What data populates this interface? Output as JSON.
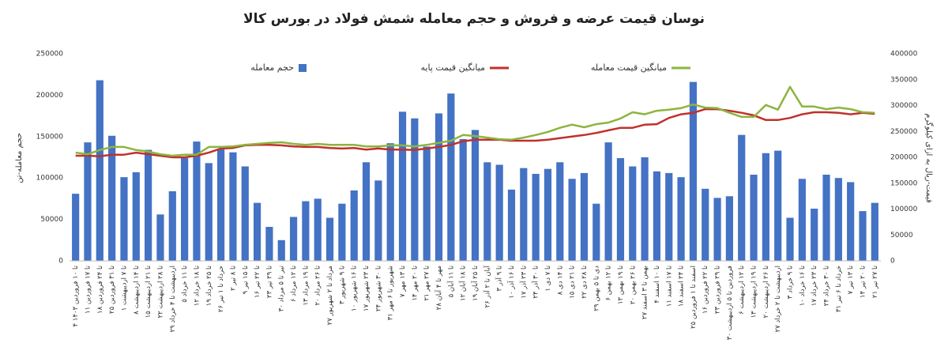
{
  "chart_data": {
    "type": "bar_line",
    "title": "نوسان قیمت عرضه و فروش و حجم معامله شمش فولاد در بورس کالا",
    "y_label": "حجم معامله-تن",
    "y2_label": "قیمت-ریال به ازای کیلوگرم",
    "categories": [
      "۴ تا ۱۰ فروردین ۱۴۰۳",
      "۱۱ تا ۱۷ فروردین",
      "۱۸ تا ۲۴ فروردین",
      "۲۵ تا ۳۱ فروردین",
      "۱ تا ۷ اردیبهشت",
      "۸ تا ۱۴ اردیبهشت",
      "۱۵ تا ۲۱ اردیبهشت",
      "۲۲ تا ۲۸ اردیبهشت",
      "۲۹ اردیبهشت تا ۴ خرداد",
      "۵ تا ۱۱ خرداد",
      "۱۲ تا ۱۸ خرداد",
      "۱۹ تا ۲۵ خرداد",
      "۲۶ خرداد تا ۱ تیر",
      "۲ تا ۸ تیر",
      "۹ تا ۱۵ تیر",
      "۱۶ تا ۲۲ تیر",
      "۲۳ تا ۲۹ تیر",
      "۳۰ تیر تا ۵ مرداد",
      "۶ تا ۱۲ مرداد",
      "۱۳ تا ۱۹ مرداد",
      "۲۰ تا ۲۶ مرداد",
      "۲۷ مرداد تا ۲ شهریور",
      "۳ تا ۹ شهریور",
      "۱۰ تا ۱۶ شهریور",
      "۱۷ تا ۲۳ شهریور",
      "۲۴ تا ۳۰ شهریور",
      "۳۱ شهریور تا ۶ مهر",
      "۷ تا ۱۳ مهر",
      "۱۴ تا ۲۰ مهر",
      "۲۱ تا ۲۷ مهر",
      "۲۸ مهر تا ۴ آبان",
      "۵ تا ۱۱ آبان",
      "۱۲ تا ۱۸ آبان",
      "۱۹ تا ۲۵ آبان",
      "۲۶ آبان تا ۲ آذر",
      "۳ تا ۹ آذر",
      "۱۰ تا ۱۶ آذر",
      "۱۷ تا ۲۳ آذر",
      "۲۴ تا ۳۰ آذر",
      "۱ تا ۷ دی",
      "۸ تا ۱۴ دی",
      "۱۵ تا ۲۱ دی",
      "۲۲ تا ۲۸ دی",
      "۲۹ دی تا ۵ بهمن",
      "۶ تا ۱۲ بهمن",
      "۱۳ تا ۱۹ بهمن",
      "۲۰ تا ۲۶ بهمن",
      "۲۷ بهمن تا ۳ اسفند",
      "۴ تا ۱۰ اسفند",
      "۱۱ تا ۱۷ اسفند",
      "۱۸ تا ۲۴ اسفند",
      "۲۵ اسفند تا ۱ فروردین",
      "۱۶ تا ۲۲ فروردین",
      "۲۳ تا ۲۹ فروردین",
      "۳۰ فروردین تا ۵ اردیبهشت",
      "۶ تا ۱۲ اردیبهشت",
      "۱۳ تا ۱۹ اردیبهشت",
      "۲۰ تا ۲۶ اردیبهشت",
      "۲۷ اردیبهشت تا ۲ خرداد",
      "۳ تا ۹ خرداد",
      "۱۰ تا ۱۶ خرداد",
      "۱۷ تا ۲۳ خرداد",
      "۲۴ تا ۳۰ خرداد",
      "۳۱ خرداد تا ۶ تیر",
      "۷ تا ۱۳ تیر",
      "۱۴ تا ۲۰ تیر",
      "۲۱ تا ۲۷ تیر"
    ],
    "series": [
      {
        "name": "حجم معامله",
        "color": "#4472c4",
        "kind": "bar",
        "axis": "y",
        "values": [
          81000,
          143000,
          218000,
          151000,
          101000,
          107000,
          134000,
          56000,
          84000,
          124000,
          144000,
          118000,
          135000,
          131000,
          114000,
          70000,
          41000,
          25000,
          53000,
          72000,
          75000,
          52000,
          69000,
          85000,
          119000,
          97000,
          142000,
          180000,
          172000,
          138000,
          178000,
          202000,
          147000,
          158000,
          119000,
          116000,
          86000,
          112000,
          105000,
          111000,
          119000,
          99000,
          106000,
          69000,
          143000,
          124000,
          114000,
          125000,
          108000,
          106000,
          101000,
          216000,
          87000,
          76000,
          78000,
          152000,
          104000,
          130000,
          133000,
          52000,
          99000,
          63000,
          104000,
          100000,
          95000,
          60000,
          70000
        ]
      },
      {
        "name": "میانگین قیمت پایه",
        "color": "#c0312b",
        "kind": "line",
        "axis": "y2",
        "values": [
          203000,
          203000,
          202000,
          205000,
          205000,
          209000,
          206000,
          203000,
          200000,
          200000,
          203000,
          209000,
          217000,
          218000,
          223000,
          224000,
          224000,
          223000,
          221000,
          220000,
          220000,
          218000,
          217000,
          218000,
          215000,
          217000,
          215000,
          215000,
          214000,
          217000,
          220000,
          224000,
          231000,
          234000,
          234000,
          234000,
          232000,
          232000,
          232000,
          234000,
          237000,
          240000,
          243000,
          247000,
          252000,
          257000,
          257000,
          263000,
          264000,
          276000,
          283000,
          286000,
          293000,
          293000,
          290000,
          286000,
          281000,
          272000,
          272000,
          276000,
          283000,
          287000,
          287000,
          286000,
          283000,
          286000,
          284000
        ]
      },
      {
        "name": "میانگین قیمت معامله",
        "color": "#8db43f",
        "kind": "line",
        "axis": "y2",
        "values": [
          209000,
          206000,
          214000,
          220000,
          220000,
          214000,
          211000,
          206000,
          203000,
          205000,
          205000,
          220000,
          220000,
          221000,
          224000,
          226000,
          228000,
          229000,
          226000,
          224000,
          226000,
          224000,
          224000,
          224000,
          221000,
          221000,
          223000,
          223000,
          221000,
          224000,
          228000,
          232000,
          243000,
          241000,
          238000,
          235000,
          234000,
          238000,
          243000,
          249000,
          257000,
          263000,
          258000,
          264000,
          267000,
          275000,
          287000,
          283000,
          290000,
          292000,
          295000,
          302000,
          296000,
          295000,
          286000,
          278000,
          278000,
          301000,
          292000,
          336000,
          298000,
          298000,
          293000,
          296000,
          293000,
          287000,
          286000
        ]
      }
    ],
    "ylim": [
      0,
      250000
    ],
    "yticks": [
      0,
      50000,
      100000,
      150000,
      200000,
      250000
    ],
    "y2lim": [
      0,
      400000
    ],
    "y2ticks": [
      0,
      50000,
      100000,
      150000,
      200000,
      250000,
      300000,
      350000,
      400000
    ],
    "grid": false
  }
}
